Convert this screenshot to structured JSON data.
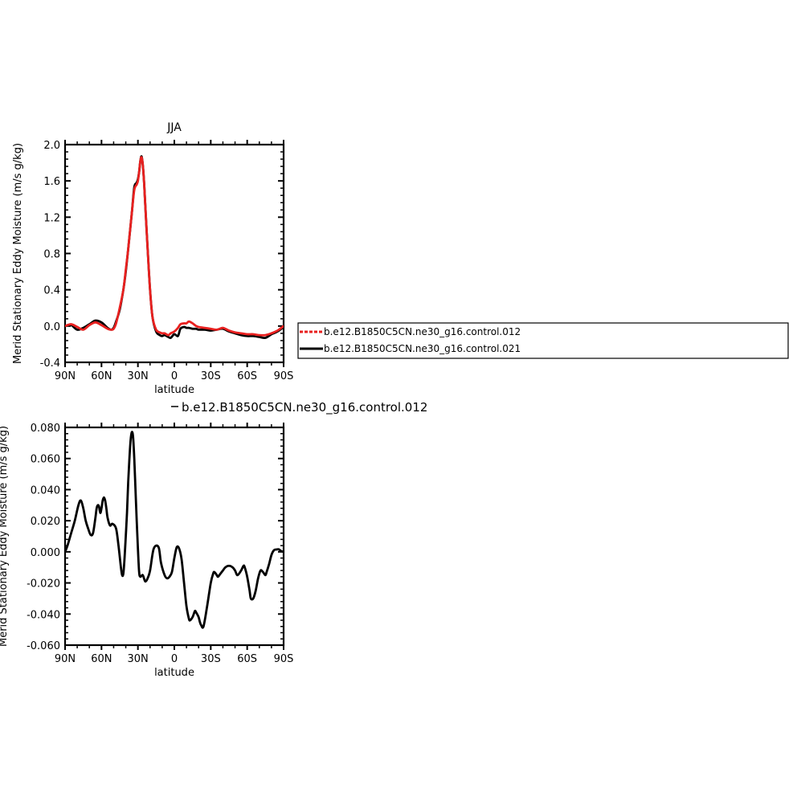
{
  "chart_data": [
    {
      "type": "line",
      "title": "JJA",
      "xlabel": "latitude",
      "ylabel": "Merid Stationary Eddy Moisture (m/s g/kg)",
      "xlim": [
        90,
        -90
      ],
      "ylim": [
        -0.4,
        2.0
      ],
      "x_ticks": [
        90,
        60,
        30,
        0,
        -30,
        -60,
        -90
      ],
      "x_tick_labels": [
        "90N",
        "60N",
        "30N",
        "0",
        "30S",
        "60S",
        "90S"
      ],
      "y_ticks": [
        -0.4,
        0.0,
        0.4,
        0.8,
        1.2,
        1.6,
        2.0
      ],
      "y_tick_labels": [
        "-0.4",
        "0.0",
        "0.4",
        "0.8",
        "1.2",
        "1.6",
        "2.0"
      ],
      "legend": {
        "placement": "right",
        "entries": [
          {
            "label": "b.e12.B1850C5CN.ne30_g16.control.012",
            "color": "#e8201f",
            "style": "dashed"
          },
          {
            "label": "b.e12.B1850C5CN.ne30_g16.control.021",
            "color": "#000000",
            "style": "solid"
          }
        ]
      },
      "series": [
        {
          "name": "b.e12.B1850C5CN.ne30_g16.control.021",
          "color": "#000000",
          "x": [
            90,
            85,
            80,
            75,
            70,
            65,
            60,
            55,
            52,
            50,
            48,
            45,
            42,
            40,
            38,
            35,
            33,
            31,
            30,
            29,
            28,
            27,
            26,
            25,
            24,
            22,
            20,
            18,
            15,
            12,
            10,
            8,
            5,
            3,
            0,
            -3,
            -5,
            -8,
            -10,
            -12,
            -15,
            -18,
            -20,
            -25,
            -30,
            -35,
            -40,
            -45,
            -50,
            -55,
            -60,
            -65,
            -70,
            -75,
            -80,
            -85,
            -90
          ],
          "y": [
            0.0,
            0.01,
            -0.04,
            -0.02,
            0.02,
            0.06,
            0.04,
            -0.02,
            -0.04,
            -0.02,
            0.05,
            0.18,
            0.4,
            0.6,
            0.85,
            1.25,
            1.53,
            1.58,
            1.62,
            1.7,
            1.82,
            1.87,
            1.78,
            1.6,
            1.35,
            0.85,
            0.4,
            0.1,
            -0.06,
            -0.1,
            -0.11,
            -0.1,
            -0.12,
            -0.13,
            -0.09,
            -0.11,
            -0.03,
            -0.01,
            -0.02,
            -0.02,
            -0.03,
            -0.03,
            -0.04,
            -0.04,
            -0.05,
            -0.04,
            -0.03,
            -0.06,
            -0.08,
            -0.1,
            -0.11,
            -0.11,
            -0.12,
            -0.13,
            -0.09,
            -0.06,
            -0.01
          ]
        },
        {
          "name": "b.e12.B1850C5CN.ne30_g16.control.012",
          "color": "#e8201f",
          "x": [
            90,
            85,
            80,
            75,
            70,
            65,
            60,
            55,
            52,
            50,
            48,
            45,
            42,
            40,
            38,
            35,
            33,
            31,
            30,
            29,
            28,
            27,
            26,
            25,
            24,
            22,
            20,
            18,
            15,
            12,
            10,
            8,
            5,
            3,
            0,
            -3,
            -5,
            -8,
            -10,
            -12,
            -15,
            -18,
            -20,
            -25,
            -30,
            -35,
            -40,
            -45,
            -50,
            -55,
            -60,
            -65,
            -70,
            -75,
            -80,
            -85,
            -90
          ],
          "y": [
            0.0,
            0.02,
            -0.01,
            -0.04,
            0.01,
            0.04,
            0.01,
            -0.03,
            -0.04,
            -0.03,
            0.03,
            0.2,
            0.4,
            0.62,
            0.85,
            1.25,
            1.5,
            1.56,
            1.6,
            1.7,
            1.82,
            1.86,
            1.78,
            1.6,
            1.35,
            0.85,
            0.4,
            0.1,
            -0.04,
            -0.07,
            -0.08,
            -0.08,
            -0.1,
            -0.08,
            -0.06,
            -0.02,
            0.02,
            0.03,
            0.03,
            0.05,
            0.03,
            0.0,
            -0.01,
            -0.02,
            -0.03,
            -0.04,
            -0.02,
            -0.05,
            -0.07,
            -0.08,
            -0.09,
            -0.09,
            -0.1,
            -0.1,
            -0.08,
            -0.05,
            0.0
          ]
        }
      ]
    },
    {
      "type": "line",
      "title": "b.e12.B1850C5CN.ne30_g16.control.012",
      "xlabel": "latitude",
      "ylabel": "Merid Stationary Eddy Moisture (m/s g/kg)",
      "xlim": [
        90,
        -90
      ],
      "ylim": [
        -0.06,
        0.08
      ],
      "x_ticks": [
        90,
        60,
        30,
        0,
        -30,
        -60,
        -90
      ],
      "x_tick_labels": [
        "90N",
        "60N",
        "30N",
        "0",
        "30S",
        "60S",
        "90S"
      ],
      "y_ticks": [
        -0.06,
        -0.04,
        -0.02,
        0.0,
        0.02,
        0.04,
        0.06,
        0.08
      ],
      "y_tick_labels": [
        "-0.060",
        "-0.040",
        "-0.020",
        "0.000",
        "0.020",
        "0.040",
        "0.060",
        "0.080"
      ],
      "series": [
        {
          "color": "#000000",
          "x": [
            90,
            88,
            85,
            82,
            79,
            77,
            75,
            73,
            71,
            69,
            67,
            65,
            64,
            63,
            62,
            61,
            60,
            59,
            58,
            57,
            56,
            55,
            53,
            51,
            48,
            46,
            44,
            43,
            42,
            41,
            40,
            39,
            38,
            37,
            36,
            35,
            34,
            33,
            32,
            31,
            30,
            29,
            28,
            26,
            24,
            22,
            20,
            17,
            13,
            11,
            8,
            6,
            4,
            2,
            0,
            -2,
            -4,
            -6,
            -8,
            -10,
            -12,
            -13,
            -15,
            -16,
            -17,
            -18,
            -20,
            -21,
            -22,
            -24,
            -27,
            -30,
            -32,
            -33,
            -35,
            -36,
            -38,
            -40,
            -42,
            -45,
            -48,
            -50,
            -52,
            -55,
            -57,
            -58,
            -60,
            -62,
            -63,
            -65,
            -67,
            -69,
            -71,
            -73,
            -75,
            -76,
            -78,
            -80,
            -82,
            -84,
            -86,
            -88,
            -90
          ],
          "y": [
            0.0,
            0.004,
            0.012,
            0.02,
            0.03,
            0.033,
            0.028,
            0.02,
            0.015,
            0.011,
            0.012,
            0.022,
            0.028,
            0.03,
            0.029,
            0.025,
            0.028,
            0.033,
            0.035,
            0.033,
            0.028,
            0.022,
            0.017,
            0.018,
            0.015,
            0.004,
            -0.01,
            -0.015,
            -0.014,
            -0.004,
            0.01,
            0.025,
            0.045,
            0.06,
            0.072,
            0.077,
            0.074,
            0.06,
            0.04,
            0.02,
            0.002,
            -0.013,
            -0.016,
            -0.015,
            -0.019,
            -0.017,
            -0.012,
            0.002,
            0.003,
            -0.007,
            -0.015,
            -0.017,
            -0.016,
            -0.013,
            -0.004,
            0.003,
            0.002,
            -0.005,
            -0.02,
            -0.035,
            -0.043,
            -0.044,
            -0.042,
            -0.04,
            -0.038,
            -0.039,
            -0.042,
            -0.045,
            -0.047,
            -0.048,
            -0.035,
            -0.02,
            -0.014,
            -0.013,
            -0.015,
            -0.016,
            -0.014,
            -0.012,
            -0.01,
            -0.009,
            -0.01,
            -0.012,
            -0.015,
            -0.012,
            -0.009,
            -0.01,
            -0.016,
            -0.025,
            -0.03,
            -0.03,
            -0.025,
            -0.017,
            -0.012,
            -0.013,
            -0.015,
            -0.013,
            -0.008,
            -0.002,
            0.001,
            0.0015,
            0.0016,
            0.0005,
            0.0
          ]
        }
      ]
    }
  ]
}
